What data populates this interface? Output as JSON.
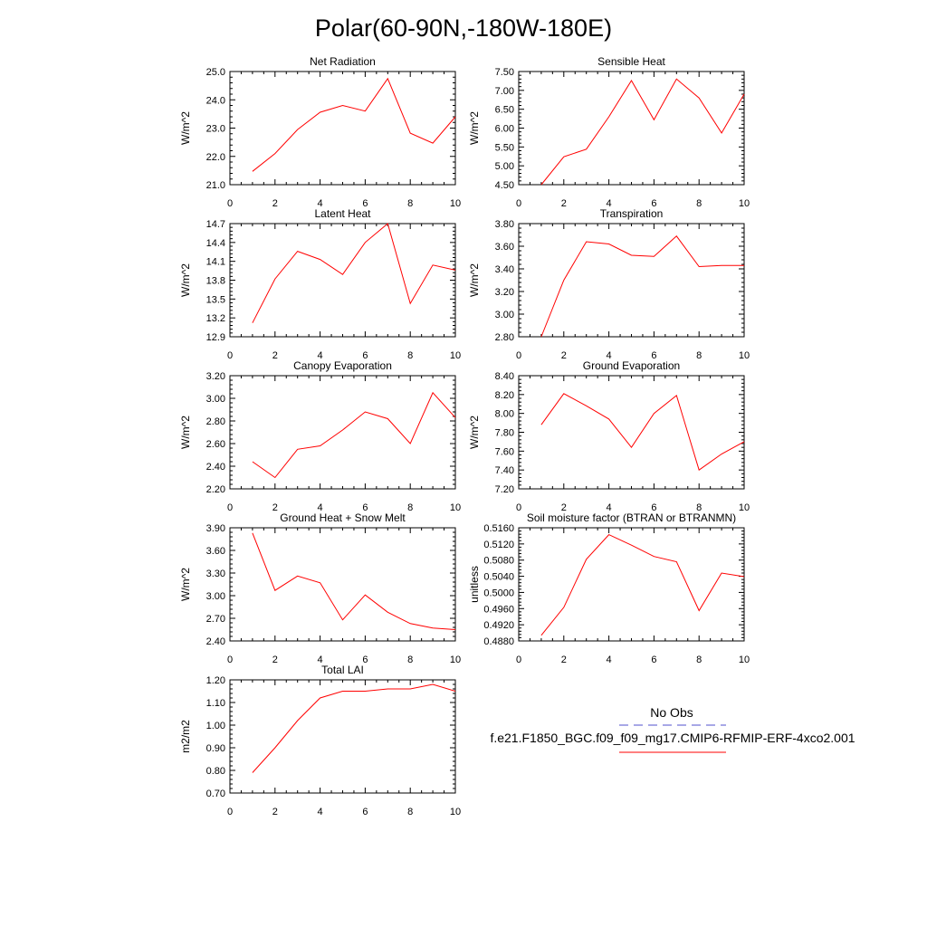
{
  "title": "Polar(60-90N,-180W-180E)",
  "colors": {
    "model_line": "#ff0000",
    "obs_line": "#5050cc",
    "axis": "#000000"
  },
  "legend": {
    "obs_label": "No Obs",
    "model_label": "f.e21.F1850_BGC.f09_f09_mg17.CMIP6-RFMIP-ERF-4xco2.001"
  },
  "chart_data": [
    {
      "type": "line",
      "title": "Net Radiation",
      "ylabel": "W/m^2",
      "xlim": [
        0,
        10
      ],
      "xticks": [
        0,
        2,
        4,
        6,
        8,
        10
      ],
      "ylim": [
        21.0,
        25.0
      ],
      "yticks": [
        "21.0",
        "22.0",
        "23.0",
        "24.0",
        "25.0"
      ],
      "x": [
        1,
        2,
        3,
        4,
        5,
        6,
        7,
        8,
        9,
        10
      ],
      "values": [
        21.47,
        22.1,
        22.95,
        23.56,
        23.8,
        23.6,
        24.75,
        22.82,
        22.47,
        23.4
      ]
    },
    {
      "type": "line",
      "title": "Sensible Heat",
      "ylabel": "W/m^2",
      "xlim": [
        0,
        10
      ],
      "xticks": [
        0,
        2,
        4,
        6,
        8,
        10
      ],
      "ylim": [
        4.5,
        7.5
      ],
      "yticks": [
        "4.50",
        "5.00",
        "5.50",
        "6.00",
        "6.50",
        "7.00",
        "7.50"
      ],
      "x": [
        1,
        2,
        3,
        4,
        5,
        6,
        7,
        8,
        9,
        10
      ],
      "values": [
        4.5,
        5.24,
        5.44,
        6.3,
        7.26,
        6.22,
        7.3,
        6.8,
        5.87,
        6.9
      ]
    },
    {
      "type": "line",
      "title": "Latent Heat",
      "ylabel": "W/m^2",
      "xlim": [
        0,
        10
      ],
      "xticks": [
        0,
        2,
        4,
        6,
        8,
        10
      ],
      "ylim": [
        12.9,
        14.7
      ],
      "yticks": [
        "12.9",
        "13.2",
        "13.5",
        "13.8",
        "14.1",
        "14.4",
        "14.7"
      ],
      "x": [
        1,
        2,
        3,
        4,
        5,
        6,
        7,
        8,
        9,
        10
      ],
      "values": [
        13.12,
        13.82,
        14.26,
        14.13,
        13.89,
        14.4,
        14.7,
        13.43,
        14.04,
        13.96
      ]
    },
    {
      "type": "line",
      "title": "Transpiration",
      "ylabel": "W/m^2",
      "xlim": [
        0,
        10
      ],
      "xticks": [
        0,
        2,
        4,
        6,
        8,
        10
      ],
      "ylim": [
        2.8,
        3.8
      ],
      "yticks": [
        "2.80",
        "3.00",
        "3.20",
        "3.40",
        "3.60",
        "3.80"
      ],
      "x": [
        1,
        2,
        3,
        4,
        5,
        6,
        7,
        8,
        9,
        10
      ],
      "values": [
        2.8,
        3.3,
        3.64,
        3.62,
        3.52,
        3.51,
        3.69,
        3.42,
        3.43,
        3.43
      ]
    },
    {
      "type": "line",
      "title": "Canopy Evaporation",
      "ylabel": "W/m^2",
      "xlim": [
        0,
        10
      ],
      "xticks": [
        0,
        2,
        4,
        6,
        8,
        10
      ],
      "ylim": [
        2.2,
        3.2
      ],
      "yticks": [
        "2.20",
        "2.40",
        "2.60",
        "2.80",
        "3.00",
        "3.20"
      ],
      "x": [
        1,
        2,
        3,
        4,
        5,
        6,
        7,
        8,
        9,
        10
      ],
      "values": [
        2.44,
        2.3,
        2.55,
        2.58,
        2.72,
        2.88,
        2.82,
        2.6,
        3.05,
        2.83
      ]
    },
    {
      "type": "line",
      "title": "Ground Evaporation",
      "ylabel": "W/m^2",
      "xlim": [
        0,
        10
      ],
      "xticks": [
        0,
        2,
        4,
        6,
        8,
        10
      ],
      "ylim": [
        7.2,
        8.4
      ],
      "yticks": [
        "7.20",
        "7.40",
        "7.60",
        "7.80",
        "8.00",
        "8.20",
        "8.40"
      ],
      "x": [
        1,
        2,
        3,
        4,
        5,
        6,
        7,
        8,
        9,
        10
      ],
      "values": [
        7.88,
        8.21,
        8.08,
        7.94,
        7.64,
        8.0,
        8.19,
        7.4,
        7.57,
        7.7
      ]
    },
    {
      "type": "line",
      "title": "Ground Heat + Snow Melt",
      "ylabel": "W/m^2",
      "xlim": [
        0,
        10
      ],
      "xticks": [
        0,
        2,
        4,
        6,
        8,
        10
      ],
      "ylim": [
        2.4,
        3.9
      ],
      "yticks": [
        "2.40",
        "2.70",
        "3.00",
        "3.30",
        "3.60",
        "3.90"
      ],
      "x": [
        1,
        2,
        3,
        4,
        5,
        6,
        7,
        8,
        9,
        10
      ],
      "values": [
        3.83,
        3.07,
        3.26,
        3.17,
        2.68,
        3.01,
        2.78,
        2.63,
        2.57,
        2.55
      ]
    },
    {
      "type": "line",
      "title": "Soil moisture factor (BTRAN or BTRANMN)",
      "ylabel": "unitless",
      "xlim": [
        0,
        10
      ],
      "xticks": [
        0,
        2,
        4,
        6,
        8,
        10
      ],
      "ylim": [
        0.488,
        0.516
      ],
      "yticks": [
        "0.4880",
        "0.4920",
        "0.4960",
        "0.5000",
        "0.5040",
        "0.5080",
        "0.5120",
        "0.5160"
      ],
      "x": [
        1,
        2,
        3,
        4,
        5,
        6,
        7,
        8,
        9,
        10
      ],
      "values": [
        0.4894,
        0.4963,
        0.5082,
        0.5143,
        0.5117,
        0.5089,
        0.5076,
        0.4955,
        0.5048,
        0.5039
      ]
    },
    {
      "type": "line",
      "title": "Total LAI",
      "ylabel": "m2/m2",
      "xlim": [
        0,
        10
      ],
      "xticks": [
        0,
        2,
        4,
        6,
        8,
        10
      ],
      "ylim": [
        0.7,
        1.2
      ],
      "yticks": [
        "0.70",
        "0.80",
        "0.90",
        "1.00",
        "1.10",
        "1.20"
      ],
      "x": [
        1,
        2,
        3,
        4,
        5,
        6,
        7,
        8,
        9,
        10
      ],
      "values": [
        0.79,
        0.9,
        1.02,
        1.12,
        1.15,
        1.15,
        1.16,
        1.16,
        1.18,
        1.15
      ]
    }
  ]
}
